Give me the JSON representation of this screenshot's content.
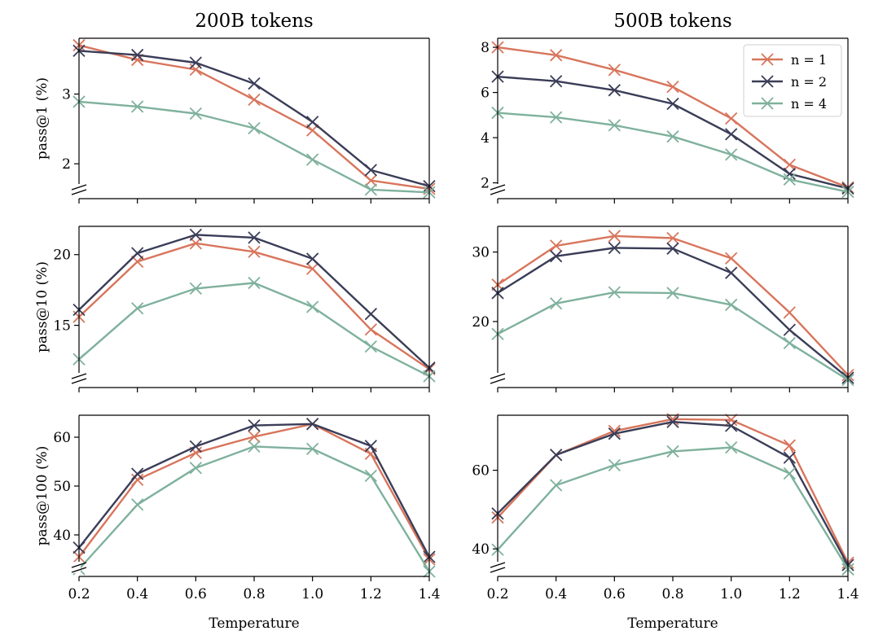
{
  "colors": {
    "n1": "#d8755c",
    "n2": "#3a3d57",
    "n4": "#7fb19d"
  },
  "legend": {
    "placement": "top-right",
    "entries": [
      "n = 1",
      "n = 2",
      "n = 4"
    ]
  },
  "chart_data": [
    {
      "type": "line",
      "title": "200B tokens",
      "xlabel": "",
      "ylabel": "pass@1 (%)",
      "x": [
        0.2,
        0.4,
        0.6,
        0.8,
        1.0,
        1.2,
        1.4
      ],
      "xticks": [
        "0.2",
        "0.4",
        "0.6",
        "0.8",
        "1.0",
        "1.2",
        "1.4"
      ],
      "xlim": [
        0.2,
        1.4
      ],
      "ylim": [
        1.5,
        3.8
      ],
      "yticks": [
        2,
        3
      ],
      "yticklabels": [
        "2",
        "3"
      ],
      "axis_break": true,
      "series": [
        {
          "name": "n = 1",
          "values": [
            3.7,
            3.49,
            3.35,
            2.92,
            2.48,
            1.76,
            1.64
          ]
        },
        {
          "name": "n = 2",
          "values": [
            3.62,
            3.56,
            3.45,
            3.15,
            2.6,
            1.91,
            1.68
          ]
        },
        {
          "name": "n = 4",
          "values": [
            2.89,
            2.82,
            2.72,
            2.51,
            2.06,
            1.63,
            1.59
          ]
        }
      ]
    },
    {
      "type": "line",
      "title": "500B tokens",
      "xlabel": "",
      "ylabel": "",
      "x": [
        0.2,
        0.4,
        0.6,
        0.8,
        1.0,
        1.2,
        1.4
      ],
      "xticks": [
        "0.2",
        "0.4",
        "0.6",
        "0.8",
        "1.0",
        "1.2",
        "1.4"
      ],
      "xlim": [
        0.2,
        1.4
      ],
      "ylim": [
        1.3,
        8.4
      ],
      "yticks": [
        2,
        4,
        6,
        8
      ],
      "yticklabels": [
        "2",
        "4",
        "6",
        "8"
      ],
      "axis_break": true,
      "series": [
        {
          "name": "n = 1",
          "values": [
            8.0,
            7.65,
            7.0,
            6.25,
            4.85,
            2.8,
            1.8
          ]
        },
        {
          "name": "n = 2",
          "values": [
            6.7,
            6.5,
            6.1,
            5.5,
            4.15,
            2.4,
            1.75
          ]
        },
        {
          "name": "n = 4",
          "values": [
            5.1,
            4.9,
            4.55,
            4.05,
            3.25,
            2.15,
            1.6
          ]
        }
      ]
    },
    {
      "type": "line",
      "title": "",
      "xlabel": "",
      "ylabel": "pass@10 (%)",
      "x": [
        0.2,
        0.4,
        0.6,
        0.8,
        1.0,
        1.2,
        1.4
      ],
      "xticks": [
        "0.2",
        "0.4",
        "0.6",
        "0.8",
        "1.0",
        "1.2",
        "1.4"
      ],
      "xlim": [
        0.2,
        1.4
      ],
      "ylim": [
        10.6,
        22.0
      ],
      "yticks": [
        15,
        20
      ],
      "yticklabels": [
        "15",
        "20"
      ],
      "axis_break": true,
      "series": [
        {
          "name": "n = 1",
          "values": [
            15.6,
            19.5,
            20.8,
            20.2,
            19.0,
            14.7,
            11.9
          ]
        },
        {
          "name": "n = 2",
          "values": [
            16.1,
            20.1,
            21.4,
            21.2,
            19.7,
            15.8,
            12.0
          ]
        },
        {
          "name": "n = 4",
          "values": [
            12.6,
            16.2,
            17.6,
            18.0,
            16.3,
            13.5,
            11.4
          ]
        }
      ]
    },
    {
      "type": "line",
      "title": "",
      "xlabel": "",
      "ylabel": "",
      "x": [
        0.2,
        0.4,
        0.6,
        0.8,
        1.0,
        1.2,
        1.4
      ],
      "xticks": [
        "0.2",
        "0.4",
        "0.6",
        "0.8",
        "1.0",
        "1.2",
        "1.4"
      ],
      "xlim": [
        0.2,
        1.4
      ],
      "ylim": [
        10.5,
        33.7
      ],
      "yticks": [
        20,
        30
      ],
      "yticklabels": [
        "20",
        "30"
      ],
      "axis_break": true,
      "series": [
        {
          "name": "n = 1",
          "values": [
            25.3,
            30.9,
            32.3,
            32.0,
            29.1,
            21.3,
            12.3
          ]
        },
        {
          "name": "n = 2",
          "values": [
            24.1,
            29.4,
            30.6,
            30.5,
            27.0,
            18.8,
            11.9
          ]
        },
        {
          "name": "n = 4",
          "values": [
            18.2,
            22.6,
            24.2,
            24.1,
            22.4,
            16.9,
            11.6
          ]
        }
      ]
    },
    {
      "type": "line",
      "title": "",
      "xlabel": "Temperature",
      "ylabel": "pass@100 (%)",
      "x": [
        0.2,
        0.4,
        0.6,
        0.8,
        1.0,
        1.2,
        1.4
      ],
      "xticks": [
        "0.2",
        "0.4",
        "0.6",
        "0.8",
        "1.0",
        "1.2",
        "1.4"
      ],
      "xlim": [
        0.2,
        1.4
      ],
      "ylim": [
        31.5,
        64.5
      ],
      "yticks": [
        40,
        50,
        60
      ],
      "yticklabels": [
        "40",
        "50",
        "60"
      ],
      "axis_break": true,
      "series": [
        {
          "name": "n = 1",
          "values": [
            35.5,
            51.3,
            56.8,
            60.1,
            62.7,
            56.6,
            35.0
          ]
        },
        {
          "name": "n = 2",
          "values": [
            37.4,
            52.5,
            58.1,
            62.4,
            62.7,
            58.2,
            35.5
          ]
        },
        {
          "name": "n = 4",
          "values": [
            33.0,
            46.2,
            53.7,
            58.1,
            57.6,
            52.1,
            32.5
          ]
        }
      ]
    },
    {
      "type": "line",
      "title": "",
      "xlabel": "Temperature",
      "ylabel": "",
      "x": [
        0.2,
        0.4,
        0.6,
        0.8,
        1.0,
        1.2,
        1.4
      ],
      "xticks": [
        "0.2",
        "0.4",
        "0.6",
        "0.8",
        "1.0",
        "1.2",
        "1.4"
      ],
      "xlim": [
        0.2,
        1.4
      ],
      "ylim": [
        33.0,
        74.0
      ],
      "yticks": [
        40,
        60
      ],
      "yticklabels": [
        "40",
        "60"
      ],
      "axis_break": true,
      "series": [
        {
          "name": "n = 1",
          "values": [
            48.0,
            63.9,
            70.0,
            73.0,
            72.8,
            66.3,
            36.5
          ]
        },
        {
          "name": "n = 2",
          "values": [
            49.0,
            63.9,
            69.3,
            72.3,
            71.3,
            63.2,
            35.9
          ]
        },
        {
          "name": "n = 4",
          "values": [
            39.8,
            56.2,
            61.3,
            64.8,
            65.8,
            59.2,
            34.8
          ]
        }
      ]
    }
  ]
}
